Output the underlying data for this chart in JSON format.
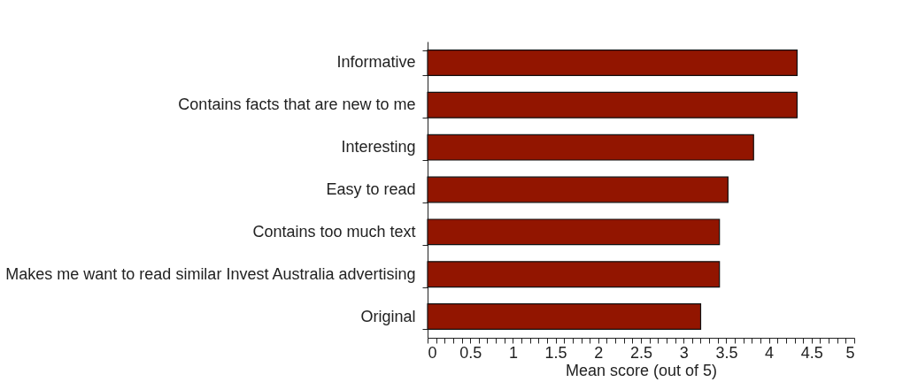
{
  "chart_data": {
    "type": "bar",
    "orientation": "horizontal",
    "xlabel": "Mean score (out of 5)",
    "categories": [
      "Informative",
      "Contains facts that are new to me",
      "Interesting",
      "Easy to read",
      "Contains too much text",
      "Makes me want to read similar Invest Australia advertising",
      "Original"
    ],
    "values": [
      4.33,
      4.33,
      3.82,
      3.52,
      3.42,
      3.42,
      3.2
    ],
    "color": "#921500",
    "xlim": [
      0,
      5
    ],
    "xticks": [
      0,
      {
        "value": 0.1,
        "label": null
      },
      {
        "value": 0.2,
        "label": null
      },
      {
        "value": 0.3,
        "label": null
      },
      {
        "value": 0.4,
        "label": null
      },
      0.5,
      {
        "value": 0.6,
        "label": null
      },
      {
        "value": 0.7,
        "label": null
      },
      {
        "value": 0.8,
        "label": null
      },
      {
        "value": 0.9,
        "label": null
      },
      1,
      {
        "value": 1.1,
        "label": null
      },
      {
        "value": 1.2,
        "label": null
      },
      {
        "value": 1.3,
        "label": null
      },
      {
        "value": 1.4,
        "label": null
      },
      1.5,
      {
        "value": 1.6,
        "label": null
      },
      {
        "value": 1.7,
        "label": null
      },
      {
        "value": 1.8,
        "label": null
      },
      {
        "value": 1.9,
        "label": null
      },
      2,
      {
        "value": 2.1,
        "label": null
      },
      {
        "value": 2.2,
        "label": null
      },
      {
        "value": 2.3,
        "label": null
      },
      {
        "value": 2.4,
        "label": null
      },
      2.5,
      {
        "value": 2.6,
        "label": null
      },
      {
        "value": 2.7,
        "label": null
      },
      {
        "value": 2.8,
        "label": null
      },
      {
        "value": 2.9,
        "label": null
      },
      3,
      {
        "value": 3.1,
        "label": null
      },
      {
        "value": 3.2,
        "label": null
      },
      {
        "value": 3.3,
        "label": null
      },
      {
        "value": 3.4,
        "label": null
      },
      3.5,
      {
        "value": 3.6,
        "label": null
      },
      {
        "value": 3.7,
        "label": null
      },
      {
        "value": 3.8,
        "label": null
      },
      {
        "value": 3.9,
        "label": null
      },
      4,
      {
        "value": 4.1,
        "label": null
      },
      {
        "value": 4.2,
        "label": null
      },
      {
        "value": 4.3,
        "label": null
      },
      {
        "value": 4.4,
        "label": null
      },
      4.5,
      {
        "value": 4.6,
        "label": null
      },
      {
        "value": 4.7,
        "label": null
      },
      {
        "value": 4.8,
        "label": null
      },
      {
        "value": 4.9,
        "label": null
      },
      5
    ],
    "grid": false
  }
}
